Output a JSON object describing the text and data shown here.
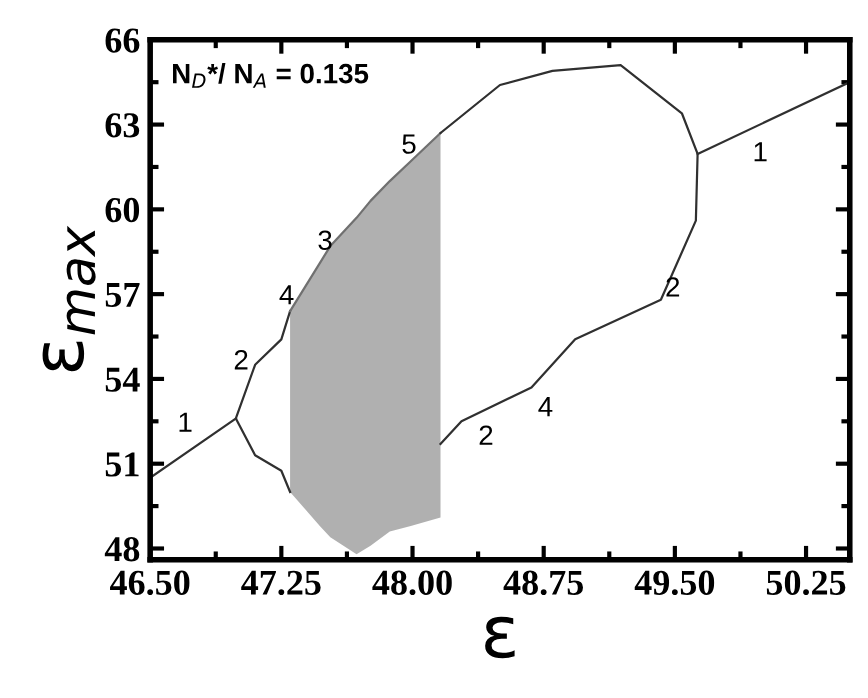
{
  "chart_data": {
    "type": "line",
    "xlabel": "ε",
    "ylabel": "ε$_{max}$",
    "xlim": [
      46.5,
      50.5
    ],
    "ylim": [
      47.6,
      66
    ],
    "xticks": [
      {
        "value": 46.5,
        "label": "46.50"
      },
      {
        "value": 47.25,
        "label": "47.25"
      },
      {
        "value": 48.0,
        "label": "48.00"
      },
      {
        "value": 48.75,
        "label": "48.75"
      },
      {
        "value": 49.5,
        "label": "49.50"
      },
      {
        "value": 50.25,
        "label": "50.25"
      }
    ],
    "yticks": [
      48,
      51,
      54,
      57,
      60,
      63,
      66
    ],
    "grid": false,
    "legend": false,
    "marker": "none",
    "line_style": "solid",
    "series": [
      {
        "color": "#303030",
        "x": [
          46.5,
          46.99
        ],
        "values": [
          50.5,
          52.6
        ]
      },
      {
        "color": "#303030",
        "x": [
          47.3,
          47.25,
          47.1,
          46.99,
          47.1,
          47.25,
          47.3
        ],
        "values": [
          56.4,
          55.4,
          54.5,
          52.6,
          51.3,
          50.75,
          50.0
        ]
      },
      {
        "color": "#707070",
        "x": [
          47.3,
          47.47,
          47.53,
          47.68,
          47.76,
          47.87,
          47.99,
          48.16
        ],
        "values": [
          56.4,
          58.1,
          58.7,
          59.7,
          60.3,
          61.0,
          61.7,
          62.7
        ],
        "lower": [
          50.0,
          48.8,
          48.4,
          47.8,
          48.1,
          48.6,
          48.8,
          49.1
        ],
        "upper": [
          56.4,
          58.1,
          58.7,
          59.7,
          60.3,
          61.0,
          61.7,
          62.7
        ]
      },
      {
        "color": "#303030",
        "x": [
          48.16,
          48.5,
          48.8,
          49.19,
          49.54,
          49.63,
          49.62,
          49.42,
          48.93,
          48.68,
          48.28,
          48.16
        ],
        "values": [
          62.7,
          64.4,
          64.9,
          65.1,
          63.4,
          61.96,
          59.6,
          56.8,
          55.4,
          53.7,
          52.5,
          51.7
        ]
      },
      {
        "color": "#303030",
        "x": [
          49.63,
          50.5
        ],
        "values": [
          61.96,
          64.5
        ]
      }
    ],
    "annotations": [
      "N$_{D}$*/ N$_{A}$ = 0.135",
      "1",
      "2",
      "4",
      "3",
      "5",
      "2",
      "4",
      "2",
      "1"
    ]
  }
}
